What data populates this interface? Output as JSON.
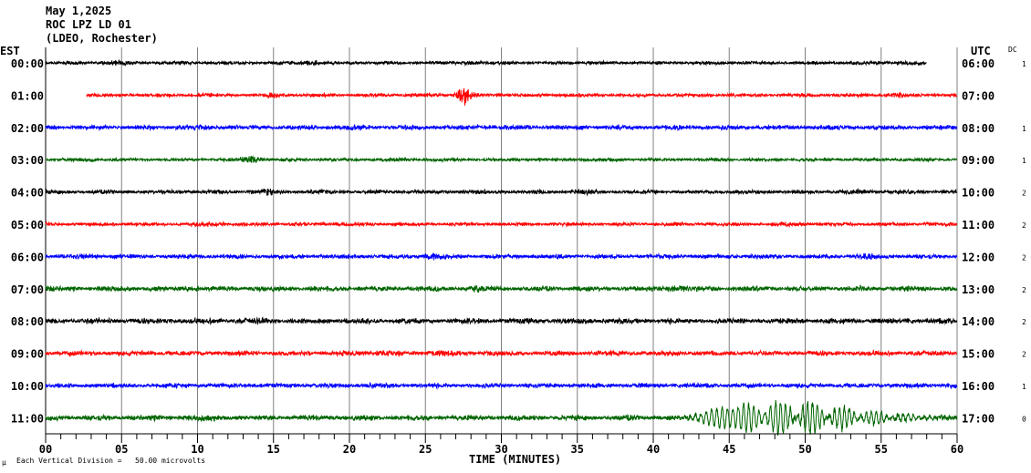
{
  "header": {
    "date": "May 1,2025",
    "station": "ROC LPZ LD 01",
    "network": "(LDEO, Rochester)"
  },
  "left_axis_title": "EST",
  "right_axis_title": "UTC",
  "dc_title": "DC",
  "footer": {
    "scale_icon": "μ",
    "scale_note": "Each Vertical Division =   50.00 microvolts"
  },
  "chart_data": {
    "type": "line",
    "title": "ROC LPZ LD 01 helicorder, May 1,2025",
    "xlabel": "TIME (MINUTES)",
    "xlim": [
      0,
      60
    ],
    "x_ticks": [
      "00",
      "05",
      "10",
      "15",
      "20",
      "25",
      "30",
      "35",
      "40",
      "45",
      "50",
      "55",
      "60"
    ],
    "x_minor_step": 1,
    "grid": "vertical every 5 minutes",
    "rows": [
      {
        "est": "00:00",
        "utc": "06:00",
        "dc": "1",
        "color": "#000000",
        "start": 0,
        "end": 58,
        "noise": 1.0,
        "events": [
          {
            "t": 4.5,
            "a": 1.8,
            "w": 1
          },
          {
            "t": 17.5,
            "a": 1.8,
            "w": 1
          },
          {
            "t": 28,
            "a": 1.6,
            "w": 1
          },
          {
            "t": 57,
            "a": 1.6,
            "w": 1
          }
        ]
      },
      {
        "est": "01:00",
        "utc": "07:00",
        "dc": "",
        "color": "#ff0000",
        "start": 2.7,
        "end": 60,
        "noise": 1.1,
        "events": [
          {
            "t": 27.6,
            "a": 5,
            "w": 0.5
          },
          {
            "t": 15,
            "a": 1.8,
            "w": 1
          },
          {
            "t": 56,
            "a": 1.8,
            "w": 0.8
          }
        ]
      },
      {
        "est": "02:00",
        "utc": "08:00",
        "dc": "1",
        "color": "#0000ff",
        "start": 0,
        "end": 60,
        "noise": 1.4,
        "events": [
          {
            "t": 9.5,
            "a": 1.8,
            "w": 1
          },
          {
            "t": 21,
            "a": 1.6,
            "w": 1
          },
          {
            "t": 29,
            "a": 1.7,
            "w": 1
          }
        ]
      },
      {
        "est": "03:00",
        "utc": "09:00",
        "dc": "1",
        "color": "#006400",
        "start": 0,
        "end": 60,
        "noise": 1.0,
        "events": [
          {
            "t": 13.5,
            "a": 2.2,
            "w": 1
          },
          {
            "t": 3,
            "a": 1.6,
            "w": 0.8
          },
          {
            "t": 23,
            "a": 1.6,
            "w": 1
          }
        ]
      },
      {
        "est": "04:00",
        "utc": "10:00",
        "dc": "2",
        "color": "#000000",
        "start": 0,
        "end": 60,
        "noise": 1.2,
        "events": [
          {
            "t": 14.5,
            "a": 2,
            "w": 1
          },
          {
            "t": 35.5,
            "a": 1.8,
            "w": 1
          },
          {
            "t": 54,
            "a": 1.6,
            "w": 1
          }
        ]
      },
      {
        "est": "05:00",
        "utc": "11:00",
        "dc": "2",
        "color": "#ff0000",
        "start": 0,
        "end": 60,
        "noise": 1.1,
        "events": [
          {
            "t": 11,
            "a": 1.7,
            "w": 1
          },
          {
            "t": 19,
            "a": 1.6,
            "w": 1
          },
          {
            "t": 49,
            "a": 1.6,
            "w": 1
          }
        ]
      },
      {
        "est": "06:00",
        "utc": "12:00",
        "dc": "2",
        "color": "#0000ff",
        "start": 0,
        "end": 60,
        "noise": 1.3,
        "events": [
          {
            "t": 25.5,
            "a": 2,
            "w": 1
          },
          {
            "t": 54,
            "a": 2,
            "w": 1
          },
          {
            "t": 3,
            "a": 1.6,
            "w": 1
          }
        ]
      },
      {
        "est": "07:00",
        "utc": "13:00",
        "dc": "2",
        "color": "#006400",
        "start": 0,
        "end": 60,
        "noise": 1.5,
        "events": [
          {
            "t": 28.5,
            "a": 2,
            "w": 1
          },
          {
            "t": 41.5,
            "a": 2,
            "w": 1
          },
          {
            "t": 9.5,
            "a": 1.7,
            "w": 1
          }
        ]
      },
      {
        "est": "08:00",
        "utc": "14:00",
        "dc": "2",
        "color": "#000000",
        "start": 0,
        "end": 60,
        "noise": 1.6,
        "events": [
          {
            "t": 14,
            "a": 1.8,
            "w": 1
          },
          {
            "t": 3.5,
            "a": 1.6,
            "w": 1
          }
        ]
      },
      {
        "est": "09:00",
        "utc": "15:00",
        "dc": "2",
        "color": "#ff0000",
        "start": 0,
        "end": 60,
        "noise": 1.5,
        "events": [
          {
            "t": 22.5,
            "a": 1.8,
            "w": 1
          },
          {
            "t": 26,
            "a": 1.7,
            "w": 1
          }
        ]
      },
      {
        "est": "10:00",
        "utc": "16:00",
        "dc": "1",
        "color": "#0000ff",
        "start": 0,
        "end": 60,
        "noise": 1.4,
        "events": [
          {
            "t": 9,
            "a": 1.7,
            "w": 1
          },
          {
            "t": 59.5,
            "a": 1.8,
            "w": 0.6
          }
        ]
      },
      {
        "est": "11:00",
        "utc": "17:00",
        "dc": "0",
        "color": "#006400",
        "start": 0,
        "end": 60,
        "noise": 1.6,
        "events": [
          {
            "t": 10.5,
            "a": 1.8,
            "w": 1.2
          },
          {
            "t": 50,
            "a": 4.5,
            "w": 4,
            "long_period": true
          }
        ]
      }
    ]
  }
}
